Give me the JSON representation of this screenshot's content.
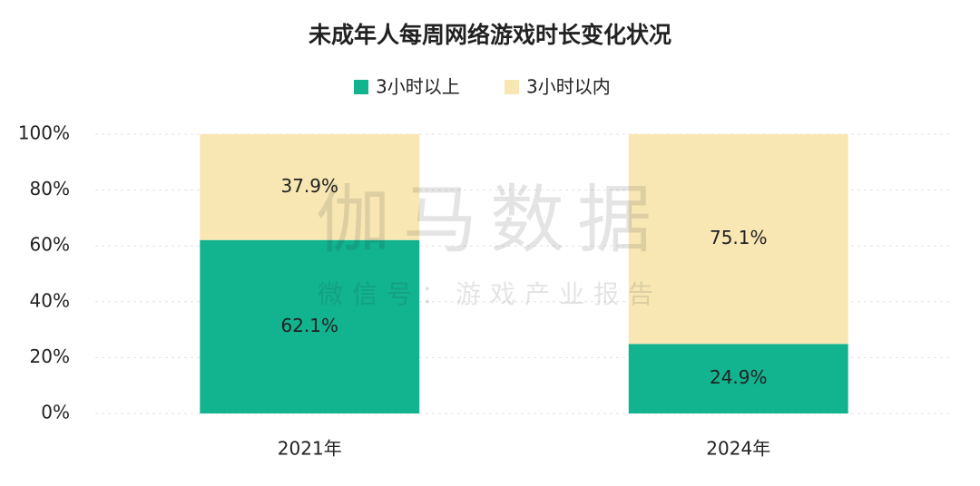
{
  "chart_data": {
    "type": "stacked_bar",
    "title": "未成年人每周网络游戏时长变化状况",
    "categories": [
      "2021年",
      "2024年"
    ],
    "series": [
      {
        "name": "3小时以上",
        "color": "#12b38f",
        "values": [
          62.1,
          24.9
        ],
        "value_labels": [
          "62.1%",
          "24.9%"
        ]
      },
      {
        "name": "3小时以内",
        "color": "#f8e7b3",
        "values": [
          37.9,
          75.1
        ],
        "value_labels": [
          "37.9%",
          "75.1%"
        ]
      }
    ],
    "ylim": [
      0,
      100
    ],
    "yticks": [
      {
        "value": 0,
        "label": "0%"
      },
      {
        "value": 20,
        "label": "20%"
      },
      {
        "value": 40,
        "label": "40%"
      },
      {
        "value": 60,
        "label": "60%"
      },
      {
        "value": 80,
        "label": "80%"
      },
      {
        "value": 100,
        "label": "100%"
      }
    ],
    "grid": true,
    "watermark": [
      "伽马数据",
      "微信号：游戏产业报告"
    ]
  }
}
